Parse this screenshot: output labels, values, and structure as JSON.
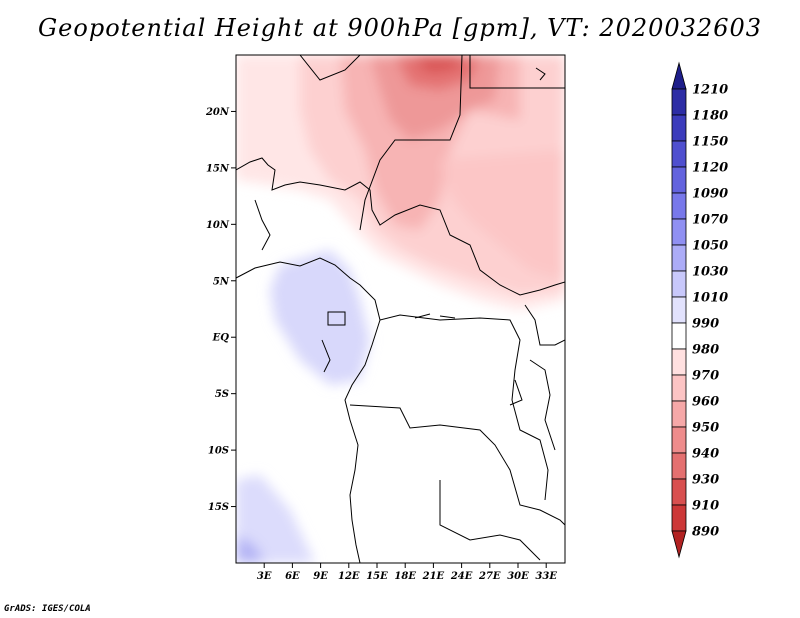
{
  "title": "Geopotential Height at 900hPa [gpm], VT: 2020032603",
  "credit": "GrADS: IGES/COLA",
  "map": {
    "lat_labels": [
      "20N",
      "15N",
      "10N",
      "5N",
      "EQ",
      "5S",
      "10S",
      "15S"
    ],
    "lat_values": [
      20,
      15,
      10,
      5,
      0,
      -5,
      -10,
      -15
    ],
    "lon_labels": [
      "3E",
      "6E",
      "9E",
      "12E",
      "15E",
      "18E",
      "21E",
      "24E",
      "27E",
      "30E",
      "33E"
    ],
    "lon_values": [
      3,
      6,
      9,
      12,
      15,
      18,
      21,
      24,
      27,
      30,
      33
    ],
    "lon_range": [
      0,
      35
    ],
    "lat_range": [
      -20,
      25
    ]
  },
  "colorbar": {
    "labels": [
      "1210",
      "1180",
      "1150",
      "1120",
      "1090",
      "1070",
      "1050",
      "1030",
      "1010",
      "990",
      "980",
      "970",
      "960",
      "950",
      "940",
      "930",
      "910",
      "890"
    ],
    "colors": [
      "#1e1e8a",
      "#2d2da5",
      "#3c3cbc",
      "#4f4fcf",
      "#6363de",
      "#7878ea",
      "#9090f2",
      "#acacf7",
      "#c8c8fb",
      "#e2e2fd",
      "#ffffff",
      "#ffe0e0",
      "#fcc4c4",
      "#f6a8a8",
      "#ee8c8c",
      "#e47070",
      "#d85050",
      "#cc3838",
      "#b22222"
    ]
  }
}
